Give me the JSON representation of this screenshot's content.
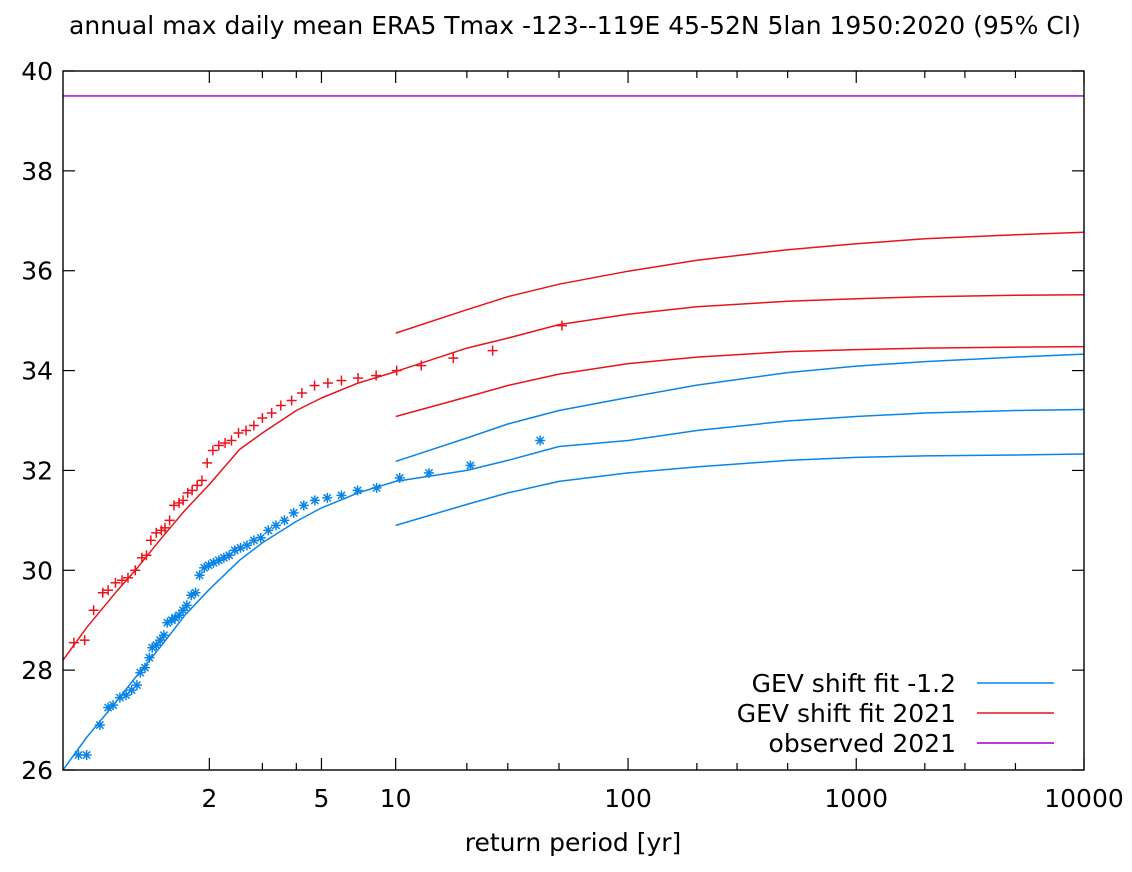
{
  "chart_data": {
    "type": "line",
    "title": "annual max daily mean ERA5 Tmax -123--119E 45-52N 5lan 1950:2020 (95% CI)",
    "xlabel": "return period [yr]",
    "ylabel": "",
    "x_scale": "gumbel",
    "xlim": [
      1.05,
      10000
    ],
    "ylim": [
      26,
      40
    ],
    "x_ticks": [
      2,
      5,
      10,
      100,
      1000,
      10000
    ],
    "x_tick_labels": [
      "2",
      "5",
      "10",
      "100",
      "1000",
      "10000"
    ],
    "x_minor_ticks": [
      3,
      4,
      20,
      30,
      50,
      200,
      300,
      500,
      2000,
      3000,
      5000
    ],
    "y_ticks": [
      26,
      28,
      30,
      32,
      34,
      36,
      38,
      40
    ],
    "y_tick_labels": [
      "26",
      "28",
      "30",
      "32",
      "34",
      "36",
      "38",
      "40"
    ],
    "grid": false,
    "legend_position": "bottom-right",
    "colors": {
      "cold": "#0a84e6",
      "current": "#e8141c",
      "observed": "#9900cc"
    },
    "legend": [
      {
        "label": "GEV shift fit -1.2",
        "color": "#0a84e6"
      },
      {
        "label": "GEV shift fit 2021",
        "color": "#e8141c"
      },
      {
        "label": "observed 2021",
        "color": "#9900cc"
      }
    ],
    "series": [
      {
        "name": "observed 2021",
        "color": "#9900cc",
        "kind": "hline",
        "y": 39.5
      },
      {
        "name": "GEV shift fit 2021",
        "color": "#e8141c",
        "kind": "line",
        "x": [
          1.05,
          1.1,
          1.2,
          1.3,
          1.5,
          1.7,
          2,
          2.5,
          3,
          4,
          5,
          7,
          10
        ],
        "y": [
          28.2,
          28.85,
          29.55,
          30.0,
          30.7,
          31.2,
          31.72,
          32.42,
          32.75,
          33.2,
          33.45,
          33.75,
          33.98
        ]
      },
      {
        "name": "GEV shift fit 2021 central",
        "color": "#e8141c",
        "kind": "line",
        "x": [
          10,
          20,
          30,
          50,
          100,
          200,
          500,
          1000,
          2000,
          5000,
          10000
        ],
        "y": [
          33.98,
          34.45,
          34.65,
          34.92,
          35.13,
          35.28,
          35.39,
          35.44,
          35.48,
          35.51,
          35.52
        ]
      },
      {
        "name": "GEV shift fit 2021 upper",
        "color": "#e8141c",
        "kind": "line",
        "x": [
          10,
          20,
          30,
          50,
          100,
          200,
          500,
          1000,
          2000,
          5000,
          10000
        ],
        "y": [
          34.75,
          35.22,
          35.48,
          35.73,
          35.99,
          36.21,
          36.42,
          36.54,
          36.64,
          36.72,
          36.77
        ]
      },
      {
        "name": "GEV shift fit 2021 lower",
        "color": "#e8141c",
        "kind": "line",
        "x": [
          10,
          20,
          30,
          50,
          100,
          200,
          500,
          1000,
          2000,
          5000,
          10000
        ],
        "y": [
          33.08,
          33.47,
          33.7,
          33.93,
          34.14,
          34.27,
          34.38,
          34.42,
          34.45,
          34.47,
          34.48
        ]
      },
      {
        "name": "GEV shift fit -1.2",
        "color": "#0a84e6",
        "kind": "line",
        "x": [
          1.05,
          1.1,
          1.2,
          1.3,
          1.5,
          1.7,
          2,
          2.5,
          3,
          4,
          5,
          7,
          10
        ],
        "y": [
          26.0,
          26.65,
          27.35,
          27.85,
          28.55,
          29.1,
          29.62,
          30.2,
          30.55,
          30.98,
          31.25,
          31.55,
          31.78
        ]
      },
      {
        "name": "GEV shift fit -1.2 central",
        "color": "#0a84e6",
        "kind": "line",
        "x": [
          10,
          20,
          30,
          50,
          100,
          200,
          500,
          1000,
          2000,
          5000,
          10000
        ],
        "y": [
          31.78,
          32.0,
          32.2,
          32.48,
          32.6,
          32.8,
          32.99,
          33.08,
          33.15,
          33.2,
          33.22
        ]
      },
      {
        "name": "GEV shift fit -1.2 upper",
        "color": "#0a84e6",
        "kind": "line",
        "x": [
          10,
          20,
          30,
          50,
          100,
          200,
          500,
          1000,
          2000,
          5000,
          10000
        ],
        "y": [
          32.18,
          32.65,
          32.93,
          33.2,
          33.46,
          33.71,
          33.96,
          34.09,
          34.18,
          34.27,
          34.33
        ]
      },
      {
        "name": "GEV shift fit -1.2 lower",
        "color": "#0a84e6",
        "kind": "line",
        "x": [
          10,
          20,
          30,
          50,
          100,
          200,
          500,
          1000,
          2000,
          5000,
          10000
        ],
        "y": [
          30.9,
          31.32,
          31.55,
          31.78,
          31.95,
          32.07,
          32.2,
          32.26,
          32.29,
          32.31,
          32.33
        ]
      },
      {
        "name": "observations 2021",
        "color": "#e8141c",
        "kind": "points",
        "marker": "+",
        "x": [
          1.035,
          1.07,
          1.095,
          1.12,
          1.15,
          1.17,
          1.2,
          1.23,
          1.26,
          1.3,
          1.34,
          1.37,
          1.4,
          1.44,
          1.48,
          1.51,
          1.55,
          1.59,
          1.64,
          1.68,
          1.73,
          1.78,
          1.84,
          1.9,
          1.97,
          2.05,
          2.14,
          2.24,
          2.35,
          2.48,
          2.63,
          2.8,
          3.0,
          3.24,
          3.5,
          3.84,
          4.2,
          4.7,
          5.3,
          6.0,
          7.0,
          8.3,
          10.1,
          12.8,
          17.5,
          25.8,
          51.5
        ],
        "y": [
          28.1,
          28.55,
          28.6,
          29.2,
          29.55,
          29.6,
          29.75,
          29.8,
          29.85,
          30.0,
          30.25,
          30.3,
          30.6,
          30.75,
          30.8,
          30.85,
          31.0,
          31.3,
          31.35,
          31.4,
          31.55,
          31.6,
          31.7,
          31.8,
          32.15,
          32.4,
          32.5,
          32.55,
          32.6,
          32.75,
          32.8,
          32.9,
          33.05,
          33.15,
          33.3,
          33.4,
          33.55,
          33.7,
          33.75,
          33.8,
          33.85,
          33.9,
          34.0,
          34.1,
          34.25,
          34.4,
          34.9
        ]
      },
      {
        "name": "observations -1.2",
        "color": "#0a84e6",
        "kind": "points",
        "marker": "*",
        "x": [
          1.08,
          1.1,
          1.14,
          1.17,
          1.19,
          1.22,
          1.25,
          1.28,
          1.31,
          1.33,
          1.36,
          1.39,
          1.41,
          1.44,
          1.47,
          1.5,
          1.53,
          1.57,
          1.6,
          1.64,
          1.68,
          1.72,
          1.77,
          1.82,
          1.87,
          1.93,
          1.99,
          2.06,
          2.14,
          2.22,
          2.31,
          2.41,
          2.52,
          2.65,
          2.8,
          2.96,
          3.15,
          3.36,
          3.61,
          3.91,
          4.27,
          4.71,
          5.27,
          6.0,
          6.97,
          8.34,
          10.4,
          13.8,
          20.7,
          41.4
        ],
        "y": [
          26.3,
          26.3,
          26.9,
          27.25,
          27.3,
          27.45,
          27.5,
          27.6,
          27.7,
          27.95,
          28.05,
          28.25,
          28.45,
          28.5,
          28.6,
          28.7,
          28.95,
          29.0,
          29.05,
          29.1,
          29.2,
          29.3,
          29.5,
          29.55,
          29.9,
          30.05,
          30.1,
          30.15,
          30.2,
          30.25,
          30.3,
          30.4,
          30.45,
          30.5,
          30.6,
          30.65,
          30.8,
          30.9,
          31.0,
          31.15,
          31.3,
          31.4,
          31.45,
          31.5,
          31.6,
          31.65,
          31.85,
          31.95,
          32.1,
          32.6
        ]
      }
    ]
  }
}
